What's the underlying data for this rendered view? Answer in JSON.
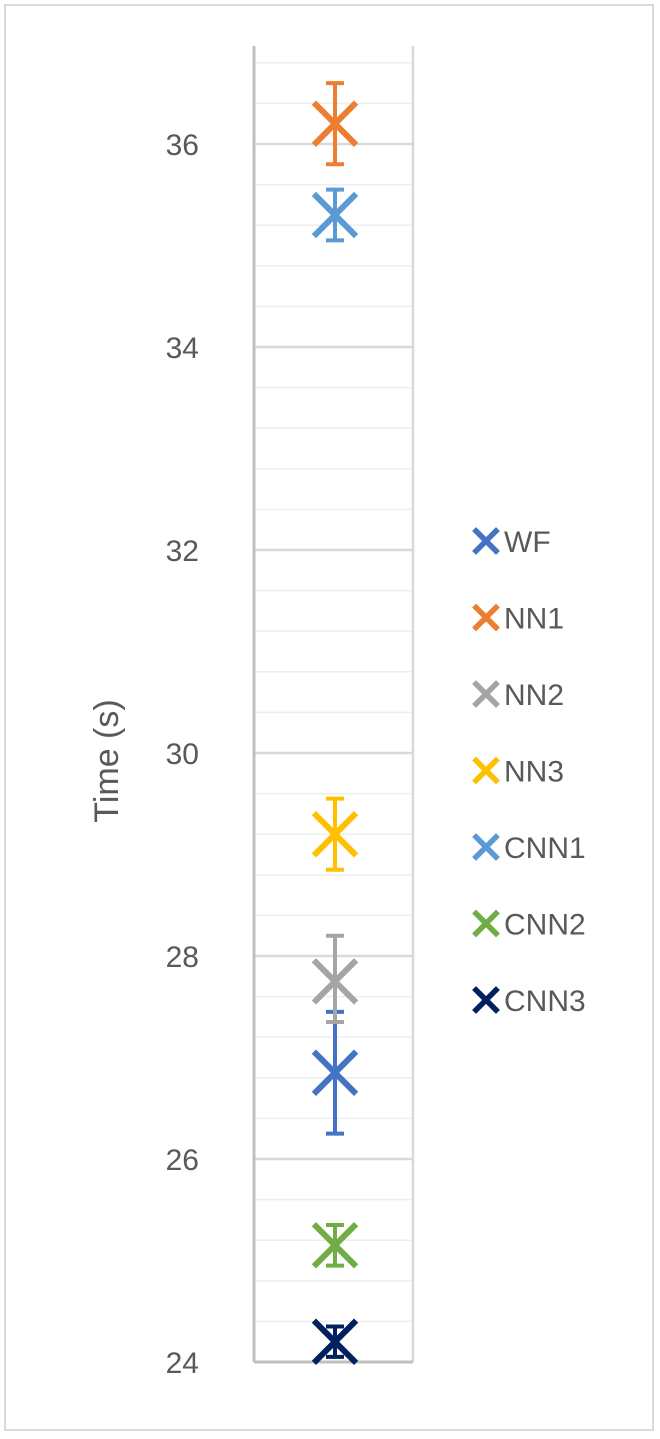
{
  "chart_data": {
    "type": "scatter",
    "title": "",
    "xlabel": "",
    "ylabel": "Time (s)",
    "ylim": [
      24,
      37
    ],
    "y_ticks": [
      24,
      26,
      28,
      30,
      32,
      34,
      36
    ],
    "grid": "horizontal major and minor gridlines",
    "error_bars": true,
    "legend_position": "right",
    "series": [
      {
        "name": "WF",
        "color": "#4472C4",
        "y": 26.85,
        "error_low": 26.25,
        "error_high": 27.45
      },
      {
        "name": "NN1",
        "color": "#ED7D31",
        "y": 36.2,
        "error_low": 35.8,
        "error_high": 36.6
      },
      {
        "name": "NN2",
        "color": "#A5A5A5",
        "y": 27.75,
        "error_low": 27.35,
        "error_high": 28.2
      },
      {
        "name": "NN3",
        "color": "#FFC000",
        "y": 29.2,
        "error_low": 28.85,
        "error_high": 29.55
      },
      {
        "name": "CNN1",
        "color": "#5B9BD5",
        "y": 35.3,
        "error_low": 35.05,
        "error_high": 35.55
      },
      {
        "name": "CNN2",
        "color": "#70AD47",
        "y": 25.15,
        "error_low": 24.95,
        "error_high": 25.35
      },
      {
        "name": "CNN3",
        "color": "#002060",
        "y": 24.2,
        "error_low": 24.05,
        "error_high": 24.35
      }
    ]
  }
}
